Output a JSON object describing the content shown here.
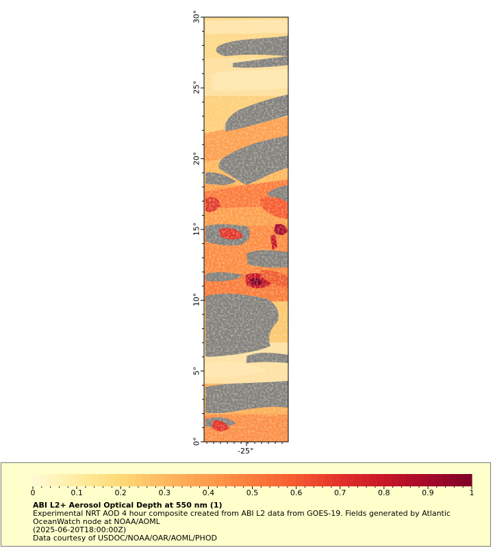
{
  "map": {
    "y_ticks": [
      "0°",
      "5°",
      "10°",
      "15°",
      "20°",
      "25°",
      "30°"
    ],
    "x_ticks": [
      "-25°"
    ],
    "lat_range": [
      0,
      30
    ],
    "lon_label_value": -25,
    "colors": {
      "nodata": "#808080",
      "frame": "#000000"
    }
  },
  "legend": {
    "ticks": [
      "0",
      "0.1",
      "0.2",
      "0.3",
      "0.4",
      "0.5",
      "0.6",
      "0.7",
      "0.8",
      "0.9",
      "1"
    ],
    "title": "ABI L2+ Aerosol Optical Depth at 550 nm (1)",
    "line1": "Experimental NRT AOD 4 hour composite created from ABI L2 data from GOES-19. Fields generated by Atlantic OceanWatch node at NOAA/AOML",
    "line2": "(2025-06-20T18:00:00Z)",
    "line3": "Data courtesy of USDOC/NOAA/OAR/AOML/PHOD",
    "value_range": [
      0,
      1
    ],
    "colormap": [
      "#fff9d6",
      "#feeda0",
      "#fed976",
      "#fdb860",
      "#fd9d4c",
      "#fc7d3c",
      "#f55a30",
      "#e2312a",
      "#c81626",
      "#a50a2a",
      "#800026"
    ]
  }
}
